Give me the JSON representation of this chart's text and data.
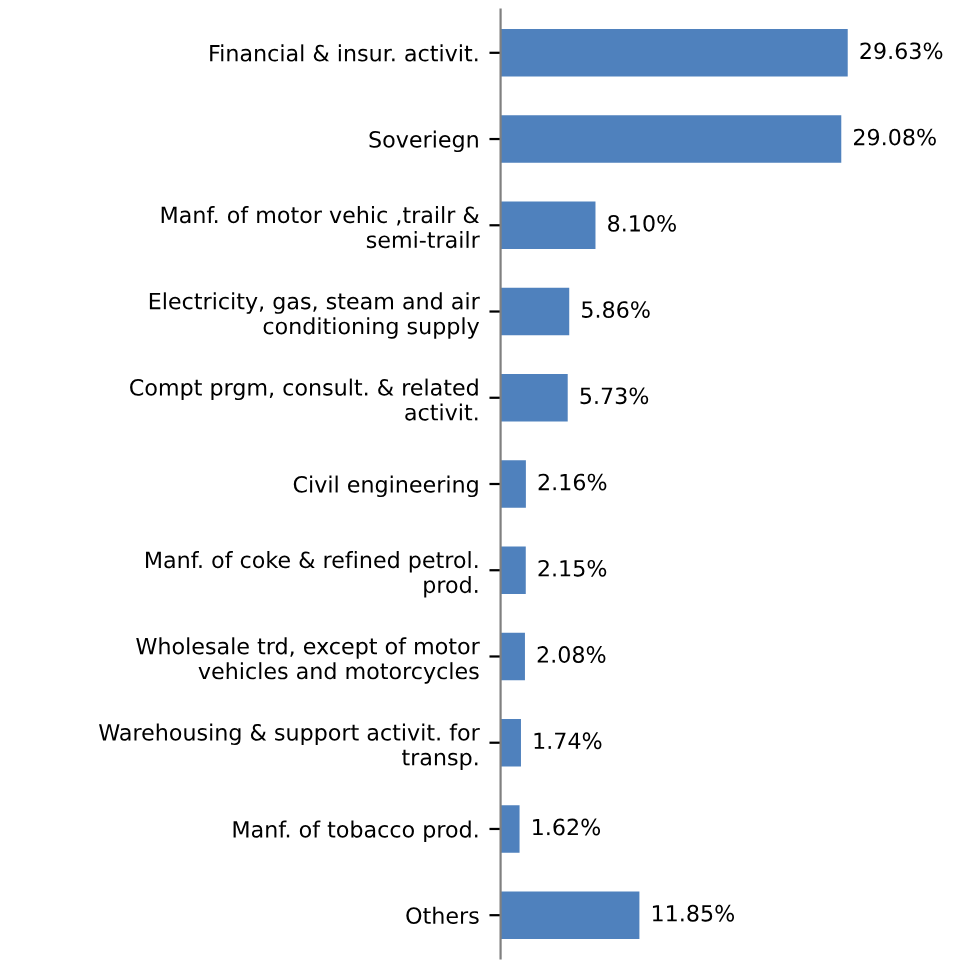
{
  "chart_data": {
    "type": "bar",
    "orientation": "horizontal",
    "categories": [
      "Financial & insur. activit.",
      "Soveriegn",
      "Manf. of motor vehic ,trailr & semi-trailr",
      "Electricity, gas, steam and air conditioning supply",
      "Compt prgm, consult. & related activit.",
      "Civil engineering",
      "Manf. of coke & refined petrol. prod.",
      "Wholesale trd, except of motor vehicles and motorcycles",
      "Warehousing & support activit. for transp.",
      "Manf. of tobacco prod.",
      "Others"
    ],
    "values": [
      29.63,
      29.08,
      8.1,
      5.86,
      5.73,
      2.16,
      2.15,
      2.08,
      1.74,
      1.62,
      11.85
    ],
    "value_labels": [
      "29.63%",
      "29.08%",
      "8.10%",
      "5.86%",
      "5.73%",
      "2.16%",
      "2.15%",
      "2.08%",
      "1.74%",
      "1.62%",
      "11.85%"
    ],
    "color": "#4f81bd",
    "tick_labels": "y",
    "grid": false,
    "legend": false
  }
}
